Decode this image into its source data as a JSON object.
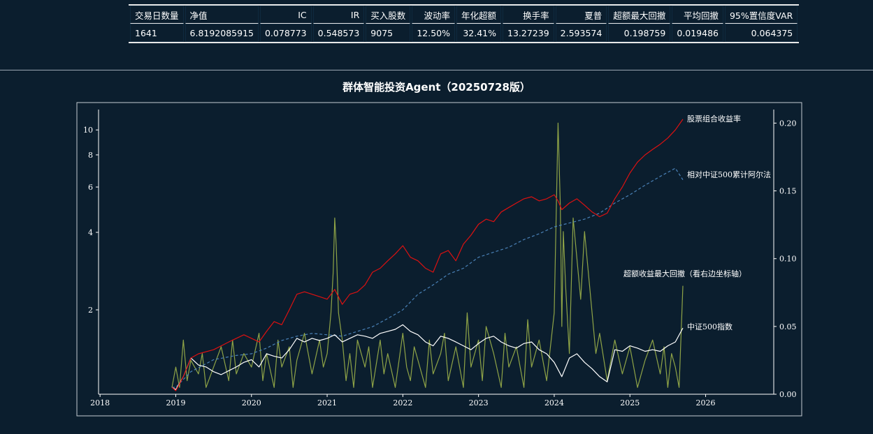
{
  "stats": {
    "headers": [
      "交易日数量",
      "净值",
      "IC",
      "IR",
      "买入股数",
      "波动率",
      "年化超额",
      "换手率",
      "夏普",
      "超额最大回撤",
      "平均回撤",
      "95%置信度VAR"
    ],
    "values": [
      "1641",
      "6.8192085915",
      "0.078773",
      "0.548573",
      "9075",
      "12.50%",
      "32.41%",
      "13.27239",
      "2.593574",
      "0.198759",
      "0.019486",
      "0.064375"
    ]
  },
  "chart_title": "群体智能投资Agent（20250728版）",
  "chart_data": {
    "type": "line",
    "title": "群体智能投资Agent（20250728版）",
    "x_axis": {
      "ticks": [
        "2018",
        "2019",
        "2020",
        "2021",
        "2022",
        "2023",
        "2024",
        "2025",
        "2026"
      ],
      "range": [
        2017.98,
        2026.9
      ]
    },
    "y_left": {
      "scale": "log",
      "ticks": [
        2,
        4,
        6,
        8,
        10
      ],
      "range": [
        0.94,
        12.0
      ]
    },
    "y_right": {
      "scale": "linear",
      "ticks": [
        "0.00",
        "0.05",
        "0.10",
        "0.15",
        "0.20"
      ],
      "range": [
        0.0,
        0.21
      ]
    },
    "series": [
      {
        "name": "股票组合收益率",
        "axis": "left",
        "color": "#dd1111",
        "style": "solid",
        "x": [
          2018.95,
          2019.0,
          2019.1,
          2019.2,
          2019.3,
          2019.5,
          2019.7,
          2019.9,
          2020.0,
          2020.1,
          2020.2,
          2020.3,
          2020.4,
          2020.5,
          2020.6,
          2020.7,
          2020.8,
          2020.9,
          2021.0,
          2021.1,
          2021.2,
          2021.3,
          2021.4,
          2021.5,
          2021.6,
          2021.7,
          2021.8,
          2021.9,
          2022.0,
          2022.1,
          2022.2,
          2022.3,
          2022.4,
          2022.5,
          2022.6,
          2022.7,
          2022.8,
          2022.9,
          2023.0,
          2023.1,
          2023.2,
          2023.3,
          2023.4,
          2023.5,
          2023.6,
          2023.7,
          2023.8,
          2023.9,
          2024.0,
          2024.05,
          2024.1,
          2024.2,
          2024.3,
          2024.4,
          2024.5,
          2024.6,
          2024.7,
          2024.8,
          2024.9,
          2025.0,
          2025.1,
          2025.2,
          2025.3,
          2025.4,
          2025.5,
          2025.6,
          2025.7
        ],
        "y": [
          1.0,
          0.97,
          1.1,
          1.3,
          1.35,
          1.4,
          1.5,
          1.6,
          1.55,
          1.5,
          1.65,
          1.8,
          1.75,
          2.0,
          2.3,
          2.35,
          2.3,
          2.25,
          2.2,
          2.4,
          2.1,
          2.3,
          2.35,
          2.5,
          2.8,
          2.9,
          3.1,
          3.3,
          3.55,
          3.2,
          3.1,
          2.9,
          2.8,
          3.3,
          3.4,
          3.1,
          3.6,
          3.9,
          4.3,
          4.5,
          4.4,
          4.8,
          5.0,
          5.2,
          5.4,
          5.5,
          5.3,
          5.4,
          5.6,
          5.3,
          4.9,
          5.2,
          5.4,
          5.1,
          4.8,
          4.6,
          4.75,
          5.4,
          6.0,
          6.8,
          7.5,
          8.0,
          8.4,
          8.8,
          9.3,
          10.0,
          11.0
        ]
      },
      {
        "name": "相对中证500累计阿尔法",
        "axis": "left",
        "color": "#4a82b8",
        "style": "dashed",
        "x": [
          2018.95,
          2019.0,
          2019.2,
          2019.5,
          2019.8,
          2020.0,
          2020.2,
          2020.4,
          2020.6,
          2020.8,
          2021.0,
          2021.2,
          2021.4,
          2021.6,
          2021.8,
          2022.0,
          2022.2,
          2022.4,
          2022.6,
          2022.8,
          2023.0,
          2023.2,
          2023.4,
          2023.6,
          2023.8,
          2024.0,
          2024.2,
          2024.4,
          2024.6,
          2024.8,
          2025.0,
          2025.2,
          2025.4,
          2025.6,
          2025.7
        ],
        "y": [
          1.0,
          1.0,
          1.15,
          1.28,
          1.33,
          1.35,
          1.42,
          1.52,
          1.58,
          1.62,
          1.6,
          1.58,
          1.65,
          1.72,
          1.85,
          2.0,
          2.3,
          2.5,
          2.75,
          2.9,
          3.2,
          3.35,
          3.5,
          3.75,
          3.95,
          4.2,
          4.35,
          4.5,
          4.75,
          5.2,
          5.6,
          6.1,
          6.6,
          7.1,
          6.4
        ]
      },
      {
        "name": "中证500指数",
        "axis": "left",
        "color": "#ffffff",
        "style": "solid",
        "x": [
          2018.95,
          2019.0,
          2019.1,
          2019.2,
          2019.3,
          2019.4,
          2019.5,
          2019.6,
          2019.7,
          2019.8,
          2019.9,
          2020.0,
          2020.1,
          2020.2,
          2020.3,
          2020.4,
          2020.5,
          2020.6,
          2020.7,
          2020.8,
          2020.9,
          2021.0,
          2021.1,
          2021.2,
          2021.3,
          2021.4,
          2021.5,
          2021.6,
          2021.7,
          2021.8,
          2021.9,
          2022.0,
          2022.1,
          2022.2,
          2022.3,
          2022.4,
          2022.5,
          2022.6,
          2022.7,
          2022.8,
          2022.9,
          2023.0,
          2023.1,
          2023.2,
          2023.3,
          2023.4,
          2023.5,
          2023.6,
          2023.7,
          2023.8,
          2023.9,
          2024.0,
          2024.1,
          2024.2,
          2024.3,
          2024.4,
          2024.5,
          2024.6,
          2024.7,
          2024.8,
          2024.9,
          2025.0,
          2025.1,
          2025.2,
          2025.3,
          2025.4,
          2025.5,
          2025.6,
          2025.7
        ],
        "y": [
          1.0,
          0.98,
          1.1,
          1.3,
          1.22,
          1.2,
          1.15,
          1.12,
          1.16,
          1.2,
          1.25,
          1.28,
          1.2,
          1.35,
          1.32,
          1.3,
          1.4,
          1.55,
          1.5,
          1.55,
          1.52,
          1.55,
          1.6,
          1.5,
          1.55,
          1.6,
          1.58,
          1.55,
          1.62,
          1.65,
          1.68,
          1.75,
          1.65,
          1.6,
          1.5,
          1.45,
          1.58,
          1.55,
          1.5,
          1.45,
          1.4,
          1.48,
          1.55,
          1.58,
          1.5,
          1.45,
          1.42,
          1.48,
          1.5,
          1.4,
          1.35,
          1.25,
          1.1,
          1.3,
          1.35,
          1.25,
          1.18,
          1.1,
          1.05,
          1.4,
          1.38,
          1.45,
          1.42,
          1.38,
          1.4,
          1.38,
          1.45,
          1.5,
          1.7
        ]
      },
      {
        "name": "超额收益最大回撤（看右边坐标轴）",
        "axis": "right",
        "color": "#8fa447",
        "style": "solid",
        "x": [
          2018.95,
          2019.0,
          2019.05,
          2019.1,
          2019.15,
          2019.2,
          2019.3,
          2019.35,
          2019.4,
          2019.5,
          2019.6,
          2019.7,
          2019.75,
          2019.8,
          2019.9,
          2020.0,
          2020.1,
          2020.15,
          2020.2,
          2020.3,
          2020.35,
          2020.4,
          2020.5,
          2020.55,
          2020.6,
          2020.7,
          2020.8,
          2020.9,
          2020.95,
          2021.0,
          2021.05,
          2021.08,
          2021.1,
          2021.12,
          2021.15,
          2021.2,
          2021.25,
          2021.3,
          2021.35,
          2021.4,
          2021.5,
          2021.55,
          2021.6,
          2021.7,
          2021.75,
          2021.8,
          2021.9,
          2022.0,
          2022.05,
          2022.1,
          2022.15,
          2022.2,
          2022.3,
          2022.35,
          2022.4,
          2022.5,
          2022.55,
          2022.6,
          2022.7,
          2022.8,
          2022.85,
          2022.9,
          2023.0,
          2023.05,
          2023.1,
          2023.2,
          2023.3,
          2023.35,
          2023.4,
          2023.5,
          2023.6,
          2023.65,
          2023.7,
          2023.8,
          2023.9,
          2024.0,
          2024.05,
          2024.08,
          2024.1,
          2024.12,
          2024.15,
          2024.2,
          2024.25,
          2024.3,
          2024.35,
          2024.4,
          2024.45,
          2024.5,
          2024.55,
          2024.6,
          2024.7,
          2024.8,
          2024.9,
          2025.0,
          2025.1,
          2025.2,
          2025.3,
          2025.4,
          2025.45,
          2025.5,
          2025.55,
          2025.6,
          2025.65,
          2025.7
        ],
        "y": [
          0.005,
          0.02,
          0.005,
          0.04,
          0.01,
          0.025,
          0.015,
          0.03,
          0.005,
          0.02,
          0.035,
          0.01,
          0.04,
          0.015,
          0.03,
          0.02,
          0.045,
          0.01,
          0.03,
          0.005,
          0.04,
          0.02,
          0.035,
          0.005,
          0.025,
          0.045,
          0.015,
          0.04,
          0.02,
          0.03,
          0.06,
          0.09,
          0.13,
          0.11,
          0.06,
          0.04,
          0.01,
          0.03,
          0.005,
          0.04,
          0.02,
          0.035,
          0.005,
          0.04,
          0.015,
          0.03,
          0.005,
          0.045,
          0.02,
          0.01,
          0.035,
          0.025,
          0.005,
          0.04,
          0.015,
          0.03,
          0.045,
          0.01,
          0.035,
          0.005,
          0.06,
          0.02,
          0.04,
          0.01,
          0.05,
          0.03,
          0.005,
          0.045,
          0.02,
          0.035,
          0.005,
          0.055,
          0.02,
          0.04,
          0.01,
          0.06,
          0.2,
          0.14,
          0.05,
          0.12,
          0.08,
          0.03,
          0.13,
          0.1,
          0.07,
          0.12,
          0.09,
          0.06,
          0.03,
          0.045,
          0.01,
          0.04,
          0.015,
          0.035,
          0.005,
          0.025,
          0.04,
          0.015,
          0.035,
          0.005,
          0.03,
          0.02,
          0.005,
          0.08
        ]
      }
    ]
  }
}
